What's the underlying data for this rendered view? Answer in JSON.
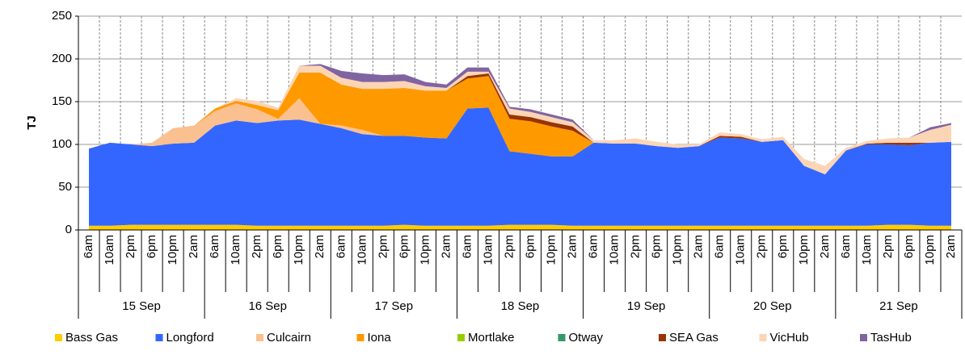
{
  "chart_data": {
    "type": "stacked-area",
    "y_label": "TJ",
    "ylim": [
      0,
      250
    ],
    "yticks": [
      0,
      50,
      100,
      150,
      200,
      250
    ],
    "grid": true,
    "categories": [
      "6am",
      "10am",
      "2pm",
      "6pm",
      "10pm",
      "2am",
      "6am",
      "10am",
      "2pm",
      "6pm",
      "10pm",
      "2am",
      "6am",
      "10am",
      "2pm",
      "6pm",
      "10pm",
      "2am",
      "6am",
      "10am",
      "2pm",
      "6pm",
      "10pm",
      "2am",
      "6am",
      "10am",
      "2pm",
      "6pm",
      "10pm",
      "2am",
      "6am",
      "10am",
      "2pm",
      "6pm",
      "10pm",
      "2am",
      "6am",
      "10am",
      "2pm",
      "6pm",
      "10pm",
      "2am"
    ],
    "groups": [
      "15 Sep",
      "16 Sep",
      "17 Sep",
      "18 Sep",
      "19 Sep",
      "20 Sep",
      "21 Sep"
    ],
    "legend": "bottom",
    "series": [
      {
        "name": "Bass Gas",
        "color": "#ffcc00",
        "values": [
          5,
          5,
          6,
          6,
          6,
          6,
          6,
          6,
          5,
          5,
          5,
          5,
          5,
          5,
          5,
          6,
          5,
          5,
          5,
          5,
          6,
          6,
          6,
          5,
          5,
          5,
          5,
          5,
          5,
          5,
          5,
          5,
          5,
          5,
          5,
          5,
          5,
          5,
          6,
          6,
          5,
          5
        ]
      },
      {
        "name": "Longford",
        "color": "#3366ff",
        "values": [
          90,
          97,
          94,
          92,
          95,
          96,
          116,
          122,
          120,
          123,
          124,
          119,
          114,
          107,
          105,
          104,
          103,
          102,
          137,
          138,
          86,
          83,
          80,
          81,
          97,
          96,
          96,
          93,
          91,
          93,
          103,
          102,
          98,
          100,
          70,
          60,
          88,
          95,
          94,
          93,
          97,
          98
        ]
      },
      {
        "name": "Culcairn",
        "color": "#fac090",
        "values": [
          0,
          0,
          0,
          4,
          18,
          20,
          17,
          20,
          16,
          2,
          25,
          0,
          3,
          5,
          0,
          0,
          0,
          0,
          0,
          0,
          0,
          0,
          0,
          0,
          0,
          0,
          0,
          0,
          0,
          0,
          0,
          0,
          0,
          0,
          0,
          0,
          0,
          0,
          0,
          0,
          0,
          0
        ]
      },
      {
        "name": "Iona",
        "color": "#ff9900",
        "values": [
          0,
          0,
          0,
          0,
          0,
          0,
          3,
          3,
          5,
          10,
          30,
          60,
          48,
          48,
          55,
          56,
          55,
          56,
          35,
          37,
          38,
          38,
          35,
          30,
          0,
          0,
          0,
          0,
          0,
          0,
          0,
          0,
          0,
          0,
          0,
          0,
          0,
          0,
          0,
          0,
          0,
          0
        ]
      },
      {
        "name": "Mortlake",
        "color": "#99cc00",
        "values": [
          0,
          0,
          0,
          0,
          0,
          0,
          0,
          0,
          0,
          0,
          0,
          0,
          0,
          0,
          0,
          0,
          0,
          0,
          0,
          0,
          0,
          0,
          0,
          0,
          0,
          0,
          0,
          0,
          0,
          0,
          0,
          0,
          0,
          0,
          0,
          0,
          0,
          0,
          0,
          0,
          0,
          0
        ]
      },
      {
        "name": "Otway",
        "color": "#339966",
        "values": [
          0,
          0,
          0,
          0,
          0,
          0,
          0,
          0,
          0,
          0,
          0,
          0,
          0,
          0,
          0,
          0,
          0,
          0,
          0,
          0,
          0,
          0,
          0,
          0,
          0,
          0,
          0,
          0,
          0,
          0,
          0,
          0,
          0,
          0,
          0,
          0,
          0,
          0,
          0,
          0,
          0,
          0
        ]
      },
      {
        "name": "SEA Gas",
        "color": "#993300",
        "values": [
          0,
          0,
          0,
          0,
          0,
          0,
          0,
          0,
          0,
          0,
          0,
          0,
          0,
          0,
          0,
          0,
          0,
          0,
          3,
          3,
          5,
          5,
          5,
          5,
          0,
          0,
          0,
          0,
          0,
          0,
          2,
          2,
          0,
          0,
          0,
          0,
          0,
          1,
          2,
          3,
          0,
          0
        ]
      },
      {
        "name": "VicHub",
        "color": "#fcd5b5",
        "values": [
          0,
          0,
          0,
          0,
          0,
          0,
          0,
          3,
          5,
          3,
          8,
          8,
          8,
          8,
          8,
          8,
          5,
          3,
          5,
          2,
          7,
          6,
          6,
          5,
          3,
          4,
          6,
          5,
          4,
          2,
          4,
          3,
          3,
          4,
          8,
          10,
          3,
          3,
          5,
          6,
          15,
          20
        ]
      },
      {
        "name": "TasHub",
        "color": "#8064a2",
        "values": [
          0,
          0,
          0,
          0,
          0,
          0,
          0,
          0,
          0,
          0,
          0,
          2,
          8,
          10,
          8,
          8,
          5,
          4,
          5,
          5,
          2,
          3,
          3,
          3,
          0,
          0,
          0,
          0,
          0,
          0,
          0,
          0,
          0,
          0,
          0,
          0,
          0,
          0,
          0,
          0,
          3,
          2
        ]
      }
    ]
  }
}
